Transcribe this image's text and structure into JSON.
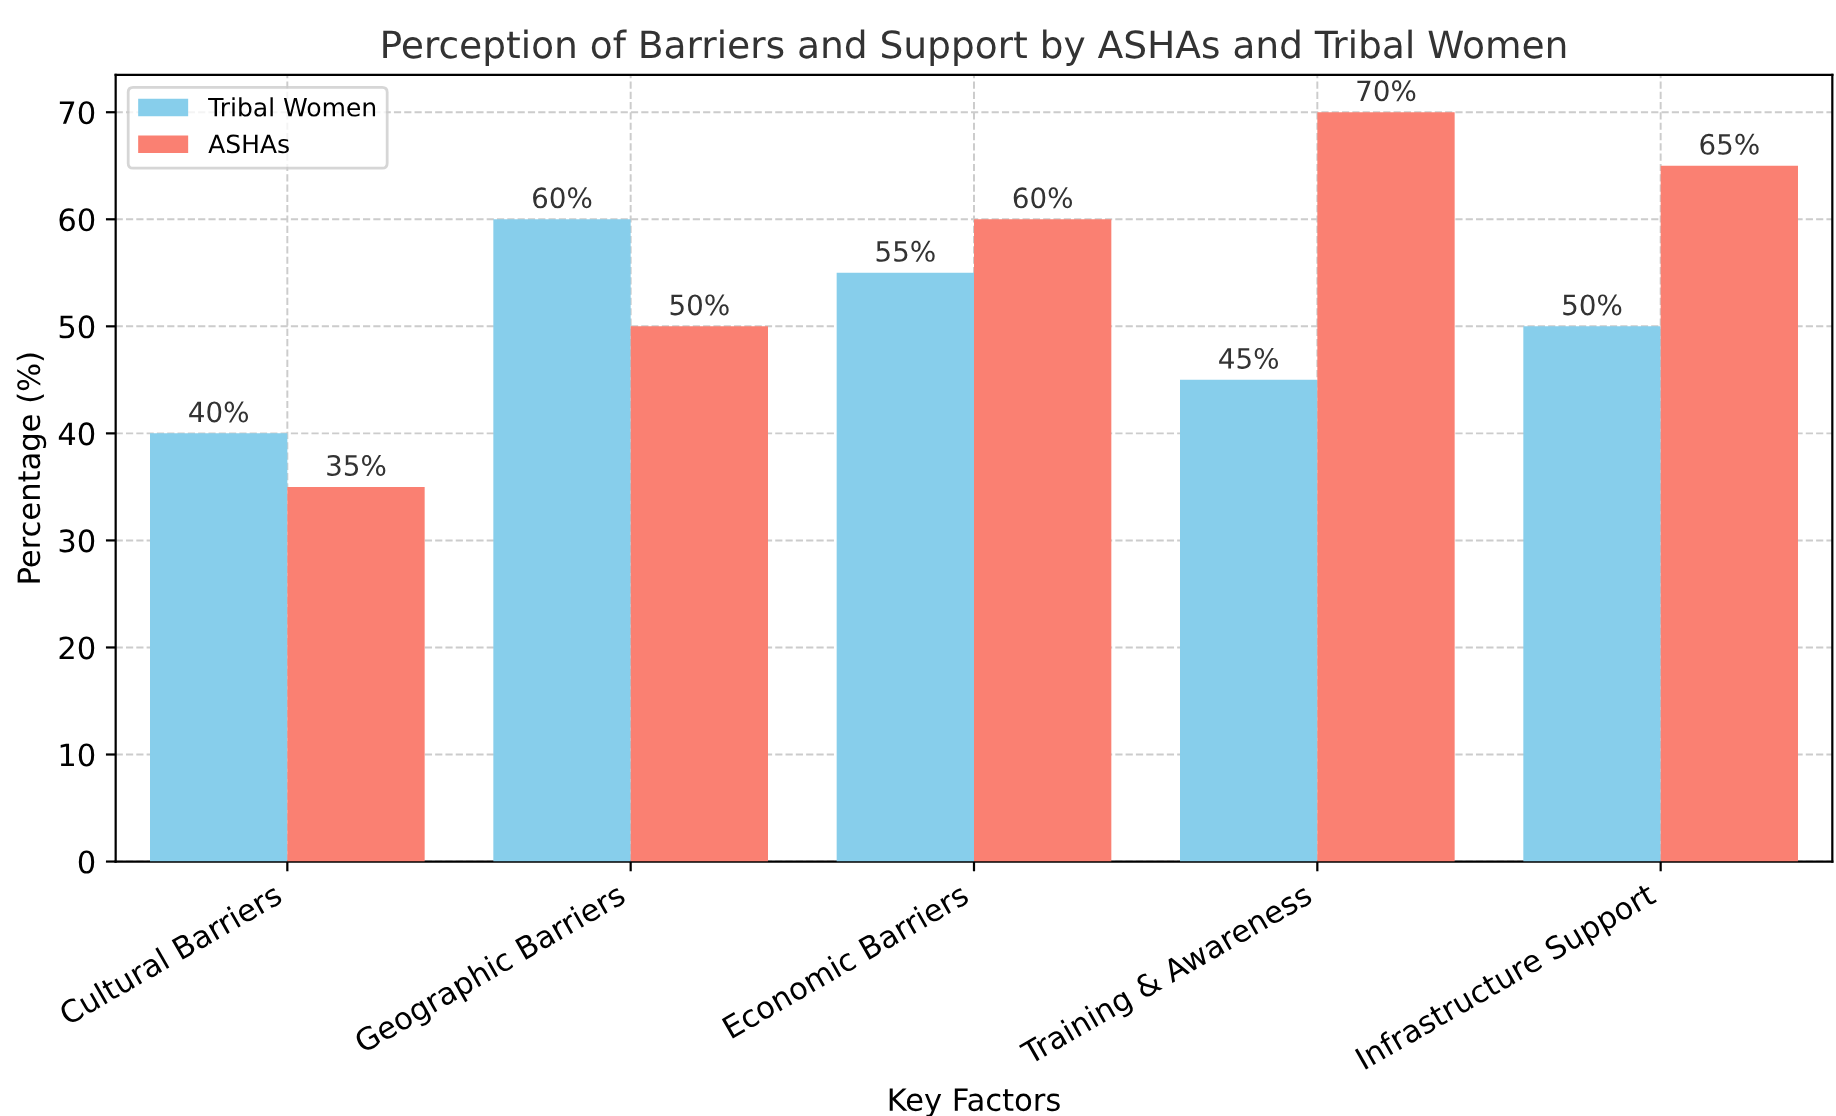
{
  "chart_data": {
    "type": "bar",
    "title": "Perception of Barriers and Support by ASHAs and Tribal Women",
    "xlabel": "Key Factors",
    "ylabel": "Percentage (%)",
    "categories": [
      "Cultural Barriers",
      "Geographic Barriers",
      "Economic Barriers",
      "Training & Awareness",
      "Infrastructure Support"
    ],
    "series": [
      {
        "name": "Tribal Women",
        "color": "#87ceeb",
        "values": [
          40,
          60,
          55,
          45,
          50
        ],
        "value_labels": [
          "40%",
          "60%",
          "55%",
          "45%",
          "50%"
        ]
      },
      {
        "name": "ASHAs",
        "color": "#fa8072",
        "values": [
          35,
          50,
          60,
          70,
          65
        ],
        "value_labels": [
          "35%",
          "50%",
          "60%",
          "70%",
          "65%"
        ]
      }
    ],
    "ylim": [
      0,
      73.5
    ],
    "yticks": [
      0,
      10,
      20,
      30,
      40,
      50,
      60,
      70
    ],
    "grid": true,
    "legend": "top left"
  }
}
